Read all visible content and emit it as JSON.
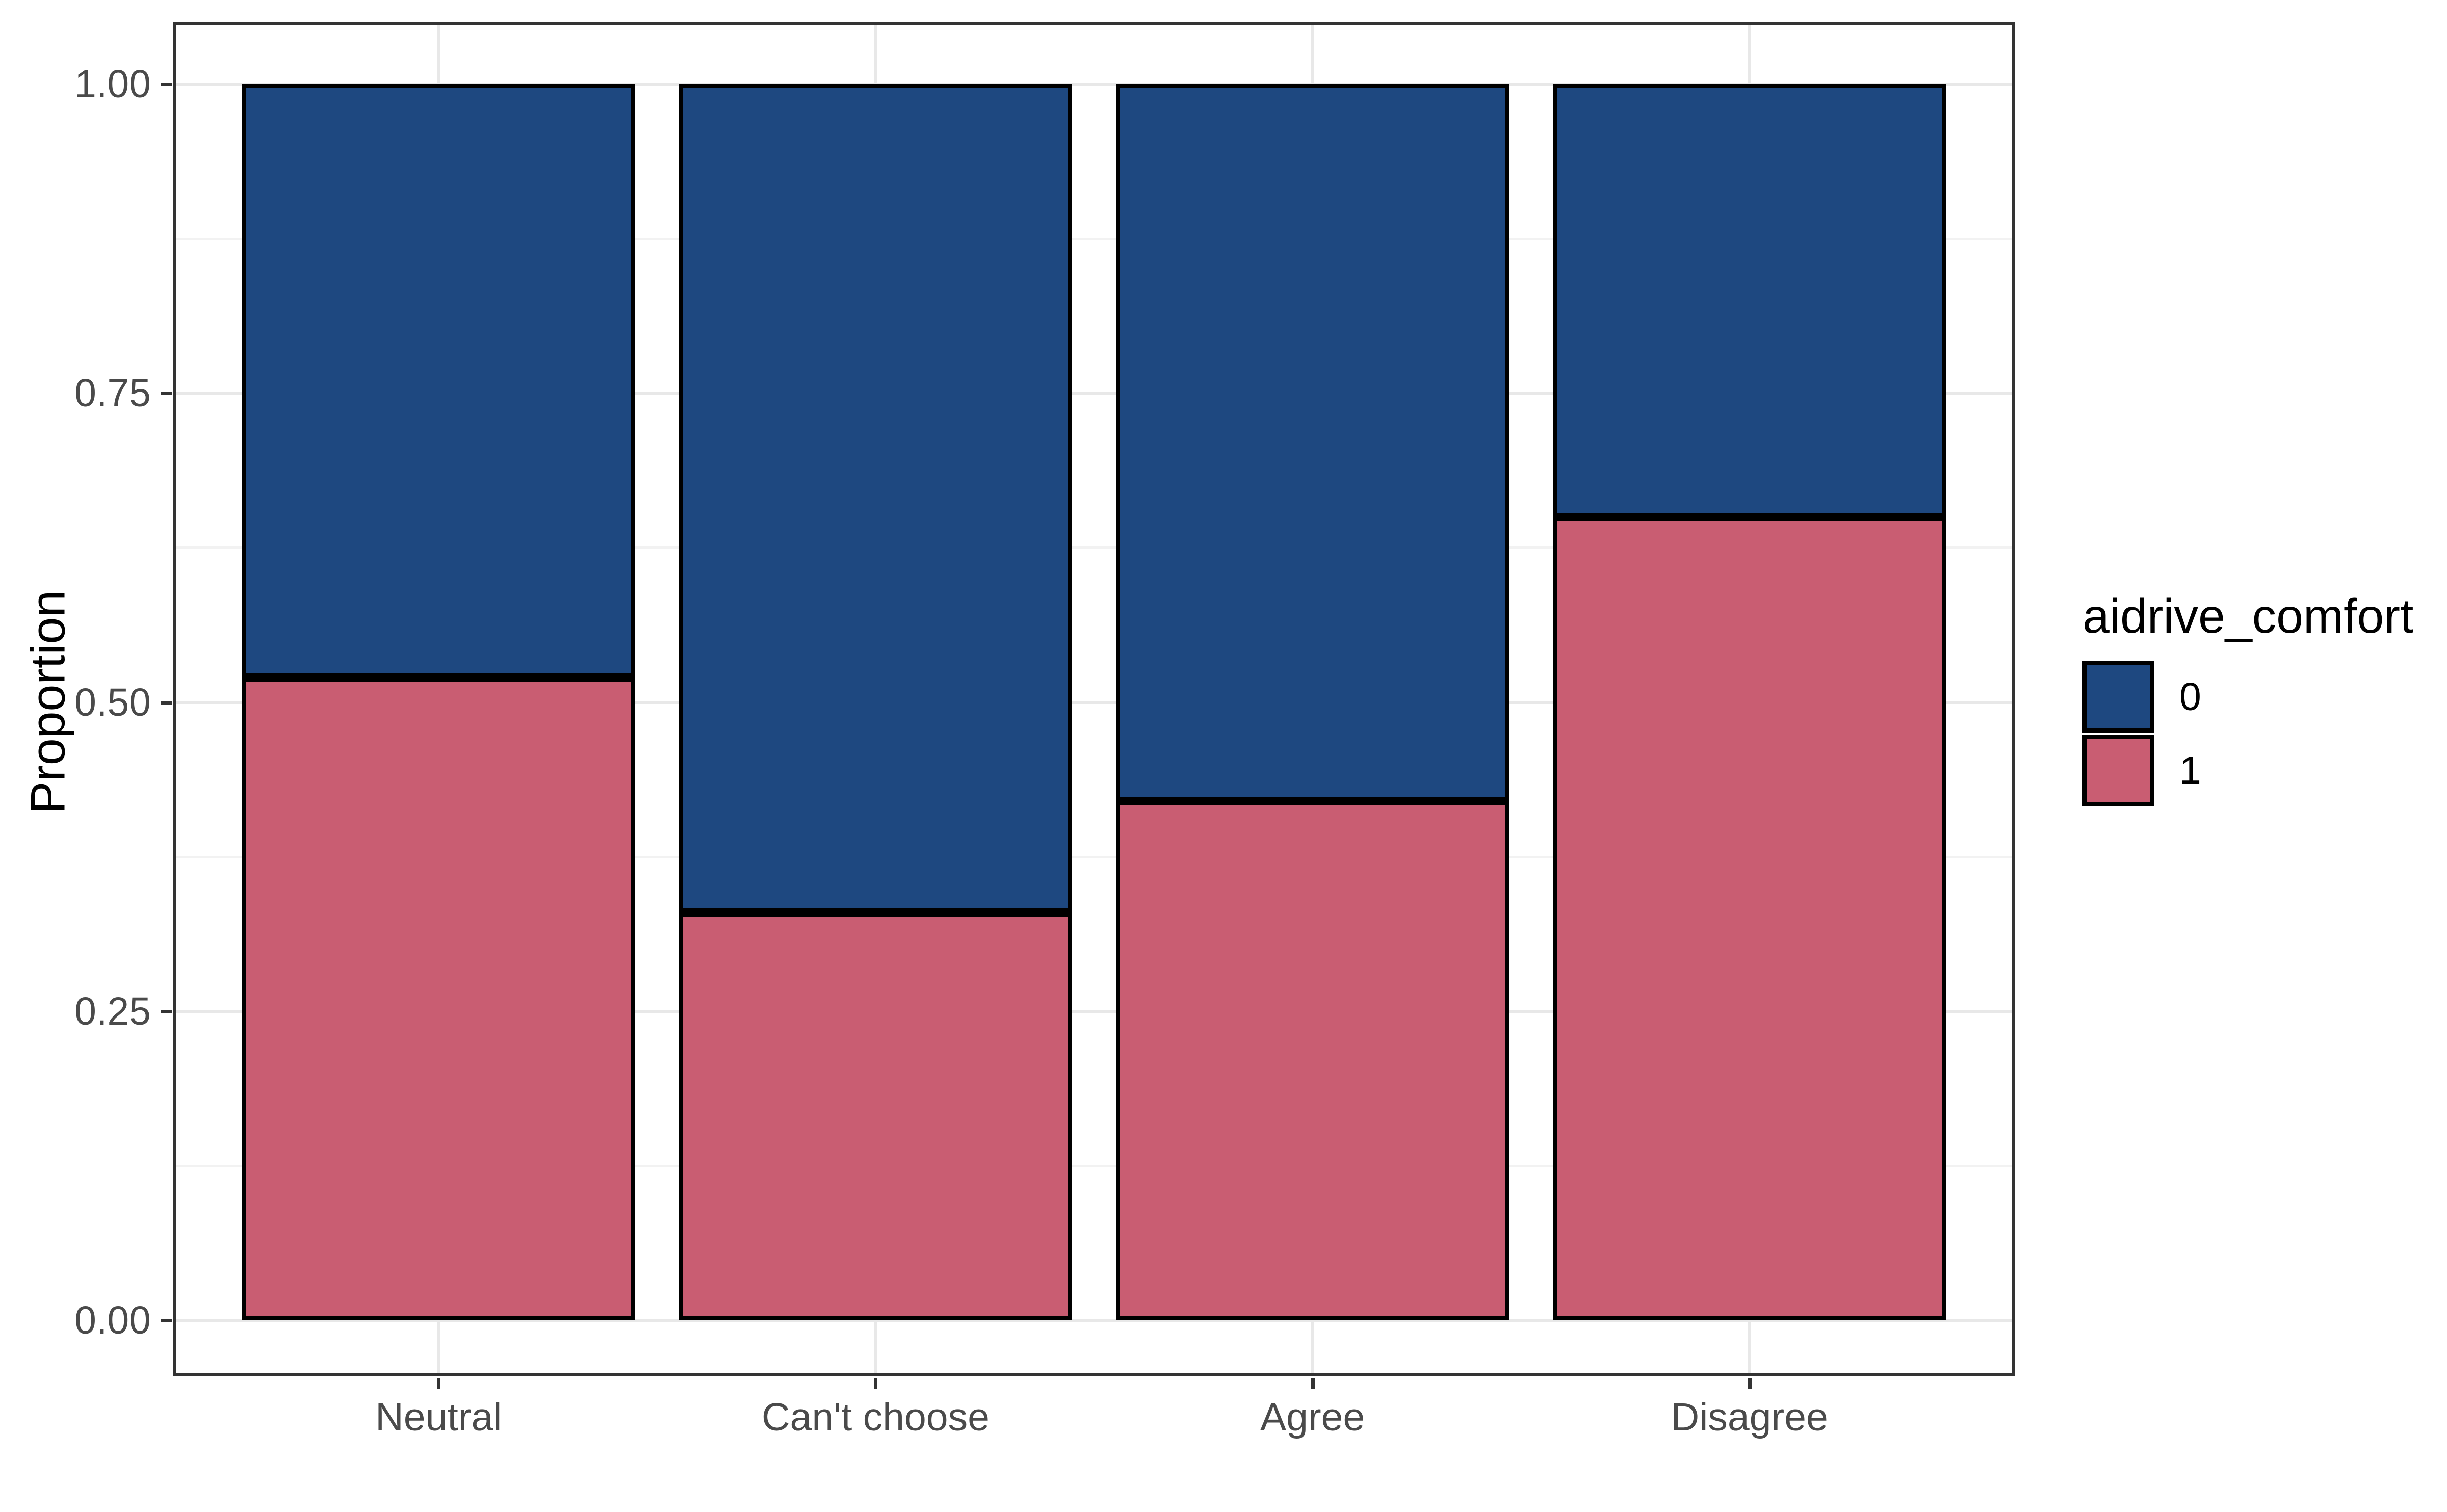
{
  "chart_data": {
    "type": "bar",
    "stacked": true,
    "orientation": "vertical",
    "title": "",
    "xlabel": "",
    "ylabel": "Proportion",
    "categories": [
      "Neutral",
      "Can't choose",
      "Agree",
      "Disagree"
    ],
    "series": [
      {
        "name": "0",
        "color": "#1E4880",
        "values": [
          0.48,
          0.67,
          0.58,
          0.35
        ]
      },
      {
        "name": "1",
        "color": "#C95D72",
        "values": [
          0.52,
          0.33,
          0.42,
          0.65
        ]
      }
    ],
    "stack_order_top_to_bottom": [
      "0",
      "1"
    ],
    "ylim": [
      0,
      1
    ],
    "y_ticks": [
      {
        "value": 1.0,
        "label": "1.00"
      },
      {
        "value": 0.75,
        "label": "0.75"
      },
      {
        "value": 0.5,
        "label": "0.50"
      },
      {
        "value": 0.25,
        "label": "0.25"
      },
      {
        "value": 0.0,
        "label": "0.00"
      }
    ],
    "y_minor_ticks": [
      0.875,
      0.625,
      0.375,
      0.125
    ],
    "grid": "major+minor",
    "legend": {
      "title": "aidrive_comfort",
      "position": "right",
      "entries": [
        {
          "label": "0",
          "color": "#1E4880"
        },
        {
          "label": "1",
          "color": "#C95D72"
        }
      ]
    }
  },
  "style": {
    "bar_outline_color": "#000000",
    "panel_border_color": "#333333",
    "tick_mark_color": "#333333",
    "tick_label_color": "#4A4A4A",
    "axis_title_color": "#000000",
    "grid_major_color": "#E8E8E8",
    "grid_minor_color": "#F2F2F2",
    "background_color": "#FFFFFF"
  }
}
